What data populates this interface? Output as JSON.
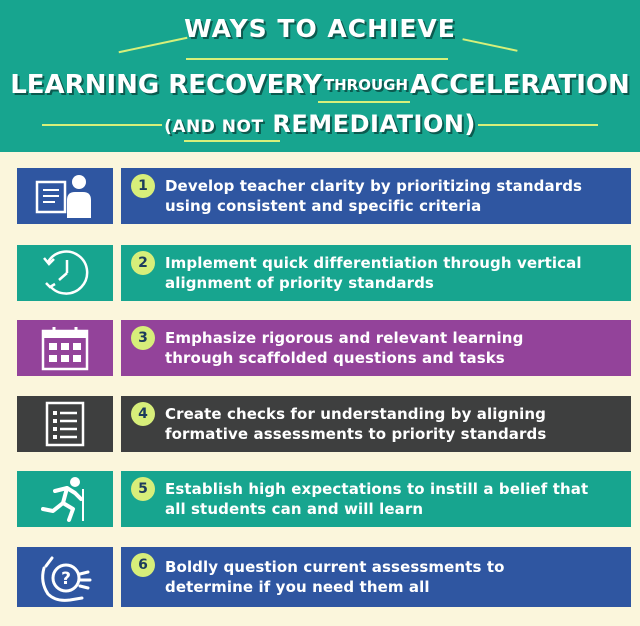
{
  "header": {
    "line1": "WAYS TO ACHIEVE",
    "line2_a": "LEARNING RECOVERY",
    "line2_b": "THROUGH",
    "line2_c": "ACCELERATION",
    "line3_a": "(AND NOT",
    "line3_b": "REMEDIATION)"
  },
  "items": [
    {
      "number": "1",
      "text1": "Develop teacher clarity by prioritizing standards",
      "text2": "using consistent and specific criteria",
      "icon": "teacher-at-board-icon",
      "color": "#2f56a1"
    },
    {
      "number": "2",
      "text1": "Implement quick differentiation through vertical",
      "text2": "alignment of priority standards",
      "icon": "clock-cycle-icon",
      "color": "#17a58f"
    },
    {
      "number": "3",
      "text1": "Emphasize rigorous and relevant learning",
      "text2": "through scaffolded questions and tasks",
      "icon": "calendar-icon",
      "color": "#93439a"
    },
    {
      "number": "4",
      "text1": "Create checks for understanding by aligning",
      "text2": "formative assessments to priority standards",
      "icon": "checklist-icon",
      "color": "#3e3f3f"
    },
    {
      "number": "5",
      "text1": "Establish high expectations to instill a belief that",
      "text2": "all students can and will learn",
      "icon": "running-person-icon",
      "color": "#17a58f"
    },
    {
      "number": "6",
      "text1": "Boldly question current assessments to",
      "text2": "determine if you need them all",
      "icon": "hand-question-icon",
      "color": "#2f56a1"
    }
  ],
  "colors": {
    "header_bg": "#17a58f",
    "page_bg": "#fbf6dc",
    "accent": "#d7ee7a"
  }
}
